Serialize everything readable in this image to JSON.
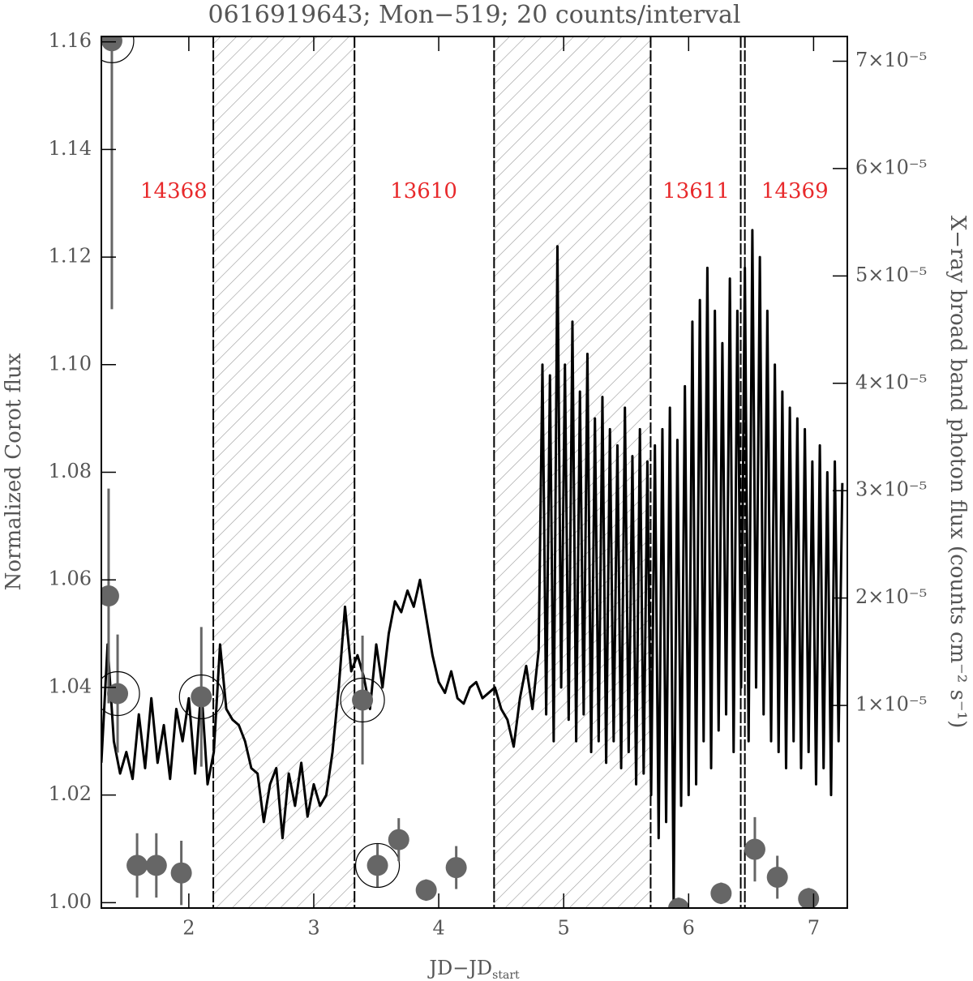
{
  "chart_data": {
    "type": "line",
    "title": "0616919643; Mon−519; 20 counts/interval",
    "xlabel": "JD−JD",
    "xlabel_subscript": "start",
    "ylabel": "Normalized Corot flux",
    "y2label": "X−ray broad band photon flux (counts cm⁻² s⁻¹)",
    "xlim": [
      1.3,
      7.27
    ],
    "xticks": [
      2,
      3,
      4,
      5,
      6,
      7
    ],
    "ylim": [
      0.999,
      1.161
    ],
    "yticks": [
      {
        "value": 1.0,
        "label": "1.00"
      },
      {
        "value": 1.02,
        "label": "1.02"
      },
      {
        "value": 1.04,
        "label": "1.04"
      },
      {
        "value": 1.06,
        "label": "1.06"
      },
      {
        "value": 1.08,
        "label": "1.08"
      },
      {
        "value": 1.1,
        "label": "1.10"
      },
      {
        "value": 1.12,
        "label": "1.12"
      },
      {
        "value": 1.14,
        "label": "1.14"
      },
      {
        "value": 1.16,
        "label": "1.16"
      }
    ],
    "y2lim": [
      -8.87e-06,
      7.23e-05
    ],
    "y2ticks": [
      {
        "value": 1e-05,
        "label": "1×10⁻⁵"
      },
      {
        "value": 2e-05,
        "label": "2×10⁻⁵"
      },
      {
        "value": 3e-05,
        "label": "3×10⁻⁵"
      },
      {
        "value": 4e-05,
        "label": "4×10⁻⁵"
      },
      {
        "value": 5e-05,
        "label": "5×10⁻⁵"
      },
      {
        "value": 6e-05,
        "label": "6×10⁻⁵"
      },
      {
        "value": 7e-05,
        "label": "7×10⁻⁵"
      }
    ],
    "hatched_regions": [
      [
        2.196,
        3.326
      ],
      [
        4.443,
        5.696
      ]
    ],
    "vlines": [
      2.196,
      3.326,
      4.443,
      5.696,
      6.417,
      6.45
    ],
    "annotations": [
      {
        "text": "14368",
        "x": 1.88,
        "color": "#e8292b"
      },
      {
        "text": "13610",
        "x": 3.88,
        "color": "#e8292b"
      },
      {
        "text": "13611",
        "x": 6.06,
        "color": "#e8292b"
      },
      {
        "text": "14369",
        "x": 6.85,
        "color": "#e8292b"
      }
    ],
    "series": [
      {
        "name": "Corot",
        "color": "#000000",
        "x": [
          1.3,
          1.35,
          1.4,
          1.45,
          1.5,
          1.55,
          1.6,
          1.65,
          1.7,
          1.75,
          1.8,
          1.85,
          1.9,
          1.95,
          2.0,
          2.05,
          2.1,
          2.15,
          2.2,
          2.25,
          2.3,
          2.35,
          2.4,
          2.45,
          2.5,
          2.55,
          2.6,
          2.65,
          2.7,
          2.75,
          2.8,
          2.85,
          2.9,
          2.95,
          3.0,
          3.05,
          3.1,
          3.15,
          3.2,
          3.25,
          3.3,
          3.35,
          3.4,
          3.45,
          3.5,
          3.55,
          3.6,
          3.65,
          3.7,
          3.75,
          3.8,
          3.85,
          3.9,
          3.95,
          4.0,
          4.05,
          4.1,
          4.15,
          4.2,
          4.25,
          4.3,
          4.35,
          4.4,
          4.45,
          4.5,
          4.55,
          4.6,
          4.65,
          4.7,
          4.75,
          4.8,
          4.83,
          4.86,
          4.89,
          4.92,
          4.95,
          4.98,
          5.01,
          5.04,
          5.07,
          5.1,
          5.13,
          5.16,
          5.19,
          5.22,
          5.25,
          5.28,
          5.31,
          5.34,
          5.37,
          5.4,
          5.43,
          5.46,
          5.49,
          5.52,
          5.55,
          5.58,
          5.61,
          5.64,
          5.67,
          5.7,
          5.73,
          5.76,
          5.79,
          5.82,
          5.85,
          5.88,
          5.91,
          5.94,
          5.97,
          6.0,
          6.03,
          6.06,
          6.09,
          6.12,
          6.15,
          6.18,
          6.21,
          6.24,
          6.27,
          6.3,
          6.33,
          6.36,
          6.39,
          6.42,
          6.45,
          6.48,
          6.51,
          6.54,
          6.57,
          6.6,
          6.63,
          6.66,
          6.69,
          6.72,
          6.75,
          6.78,
          6.81,
          6.84,
          6.87,
          6.9,
          6.93,
          6.96,
          6.99,
          7.02,
          7.05,
          7.08,
          7.11,
          7.14,
          7.17,
          7.2,
          7.23
        ],
        "values": [
          1.026,
          1.048,
          1.03,
          1.024,
          1.028,
          1.023,
          1.035,
          1.025,
          1.038,
          1.026,
          1.033,
          1.023,
          1.036,
          1.03,
          1.038,
          1.024,
          1.04,
          1.022,
          1.028,
          1.048,
          1.036,
          1.034,
          1.033,
          1.03,
          1.025,
          1.024,
          1.015,
          1.022,
          1.025,
          1.012,
          1.024,
          1.018,
          1.026,
          1.016,
          1.022,
          1.018,
          1.02,
          1.028,
          1.04,
          1.055,
          1.043,
          1.046,
          1.042,
          1.036,
          1.048,
          1.04,
          1.05,
          1.056,
          1.054,
          1.058,
          1.055,
          1.06,
          1.053,
          1.046,
          1.041,
          1.039,
          1.043,
          1.038,
          1.037,
          1.04,
          1.041,
          1.038,
          1.039,
          1.04,
          1.036,
          1.034,
          1.029,
          1.038,
          1.044,
          1.036,
          1.047,
          1.1,
          1.035,
          1.098,
          1.03,
          1.122,
          1.04,
          1.1,
          1.034,
          1.108,
          1.03,
          1.095,
          1.035,
          1.102,
          1.028,
          1.09,
          1.03,
          1.094,
          1.026,
          1.088,
          1.03,
          1.085,
          1.025,
          1.092,
          1.028,
          1.083,
          1.022,
          1.088,
          1.024,
          1.082,
          1.02,
          1.085,
          1.012,
          1.088,
          1.015,
          1.092,
          1.0,
          1.086,
          1.018,
          1.096,
          1.02,
          1.108,
          1.022,
          1.112,
          1.03,
          1.118,
          1.025,
          1.11,
          1.032,
          1.104,
          1.035,
          1.116,
          1.028,
          1.11,
          1.04,
          1.118,
          1.03,
          1.125,
          1.04,
          1.12,
          1.035,
          1.11,
          1.03,
          1.1,
          1.028,
          1.095,
          1.025,
          1.092,
          1.03,
          1.09,
          1.025,
          1.088,
          1.028,
          1.082,
          1.022,
          1.085,
          1.025,
          1.08,
          1.02,
          1.082,
          1.03,
          1.078
        ]
      },
      {
        "name": "X-ray",
        "color": "#666666",
        "axis": "y2",
        "x": [
          1.384,
          1.358,
          1.43,
          1.586,
          1.74,
          1.94,
          2.1,
          3.39,
          3.51,
          3.68,
          3.9,
          4.14,
          5.92,
          6.26,
          6.53,
          6.71,
          6.96
        ],
        "values": [
          7.19e-05,
          2.02e-05,
          1.11e-05,
          -4.9e-06,
          -4.9e-06,
          -5.6e-06,
          1.08e-05,
          1.05e-05,
          -4.9e-06,
          -2.5e-06,
          -7.2e-06,
          -5.1e-06,
          -8.9e-06,
          -7.5e-06,
          -3.4e-06,
          -6e-06,
          -8e-06
        ],
        "errors": [
          2.5e-05,
          1e-05,
          5.5e-06,
          3e-06,
          3e-06,
          3e-06,
          6.5e-06,
          6e-06,
          2e-06,
          2e-06,
          1e-06,
          2e-06,
          1e-06,
          1e-06,
          3e-06,
          2e-06,
          1e-06
        ],
        "circled": [
          true,
          false,
          true,
          false,
          false,
          false,
          true,
          true,
          true,
          false,
          false,
          false,
          false,
          false,
          false,
          false,
          false
        ]
      }
    ]
  }
}
